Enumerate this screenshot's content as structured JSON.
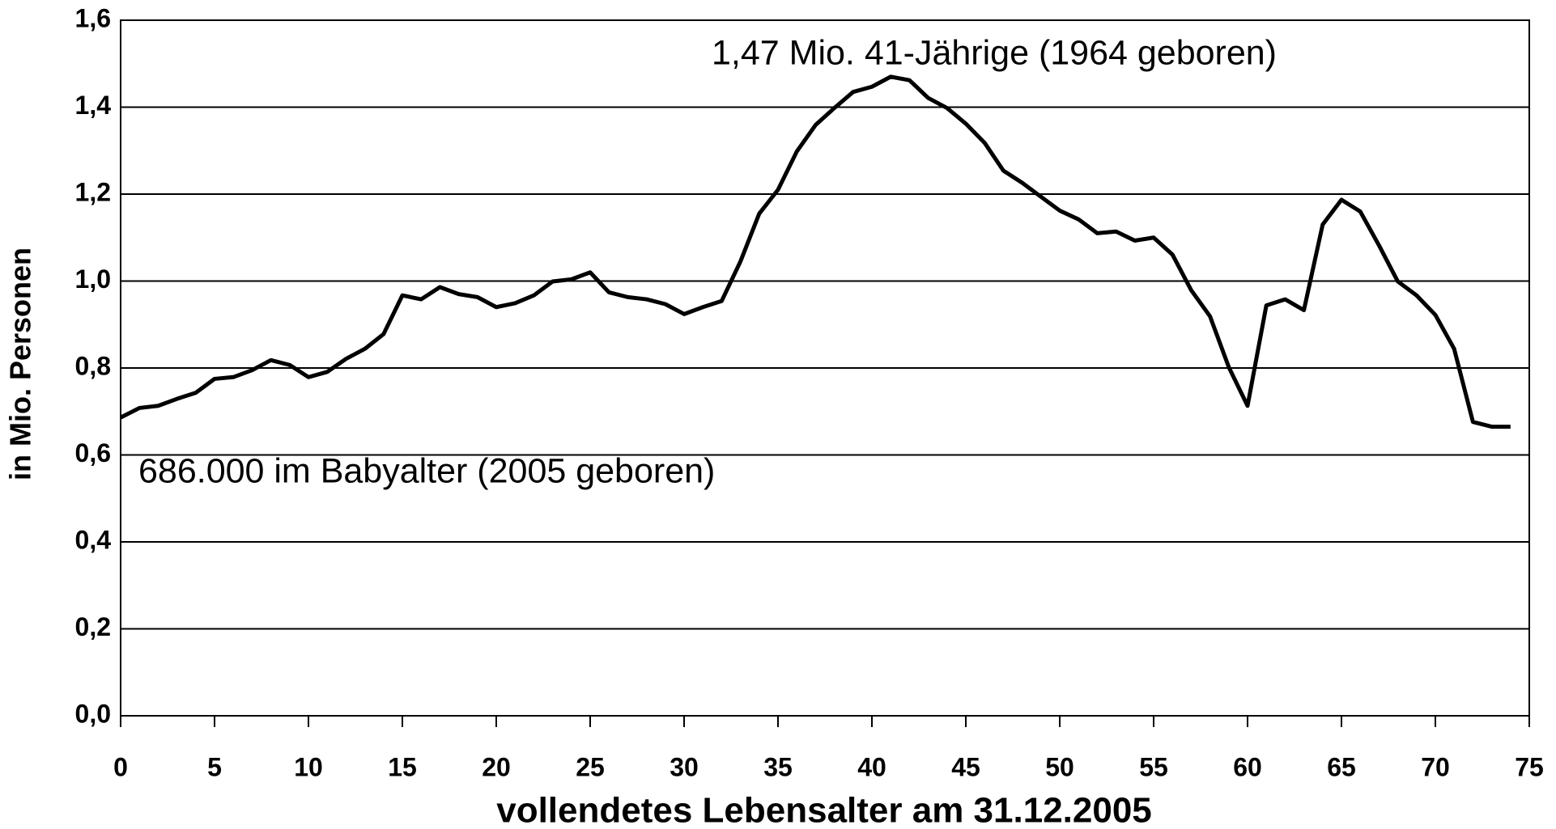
{
  "chart_data": {
    "type": "line",
    "annotations": [
      "1,47 Mio. 41-Jährige (1964 geboren)",
      "686.000 im Babyalter (2005 geboren)"
    ],
    "xlabel": "vollendetes Lebensalter am 31.12.2005",
    "ylabel": "in Mio. Personen",
    "x": [
      0,
      1,
      2,
      3,
      4,
      5,
      6,
      7,
      8,
      9,
      10,
      11,
      12,
      13,
      14,
      15,
      16,
      17,
      18,
      19,
      20,
      21,
      22,
      23,
      24,
      25,
      26,
      27,
      28,
      29,
      30,
      31,
      32,
      33,
      34,
      35,
      36,
      37,
      38,
      39,
      40,
      41,
      42,
      43,
      44,
      45,
      46,
      47,
      48,
      49,
      50,
      51,
      52,
      53,
      54,
      55,
      56,
      57,
      58,
      59,
      60,
      61,
      62,
      63,
      64,
      65,
      66,
      67,
      68,
      69,
      70,
      71,
      72,
      73,
      74
    ],
    "series": [
      {
        "color": "#000000",
        "values": [
          0.686,
          0.708,
          0.713,
          0.729,
          0.743,
          0.775,
          0.779,
          0.795,
          0.818,
          0.807,
          0.779,
          0.791,
          0.821,
          0.844,
          0.878,
          0.967,
          0.958,
          0.986,
          0.97,
          0.963,
          0.94,
          0.949,
          0.967,
          0.999,
          1.004,
          1.02,
          0.974,
          0.963,
          0.958,
          0.947,
          0.924,
          0.94,
          0.954,
          1.045,
          1.155,
          1.21,
          1.298,
          1.359,
          1.398,
          1.435,
          1.447,
          1.47,
          1.462,
          1.421,
          1.398,
          1.362,
          1.318,
          1.254,
          1.226,
          1.194,
          1.162,
          1.142,
          1.11,
          1.114,
          1.093,
          1.1,
          1.061,
          0.979,
          0.919,
          0.802,
          0.713,
          0.944,
          0.958,
          0.933,
          1.13,
          1.187,
          1.16,
          1.082,
          0.999,
          0.967,
          0.922,
          0.844,
          0.676,
          0.665,
          0.665
        ]
      }
    ],
    "xlim": [
      0,
      75
    ],
    "xticks": [
      0,
      5,
      10,
      15,
      20,
      25,
      30,
      35,
      40,
      45,
      50,
      55,
      60,
      65,
      70,
      75
    ],
    "ylim": [
      0,
      1.6
    ],
    "yticks": [
      {
        "value": 0,
        "label": "0,0"
      },
      {
        "value": 0.2,
        "label": "0,2"
      },
      {
        "value": 0.4,
        "label": "0,4"
      },
      {
        "value": 0.6,
        "label": "0,6"
      },
      {
        "value": 0.8,
        "label": "0,8"
      },
      {
        "value": 1.0,
        "label": "1,0"
      },
      {
        "value": 1.2,
        "label": "1,2"
      },
      {
        "value": 1.4,
        "label": "1,4"
      },
      {
        "value": 1.6,
        "label": "1,6"
      }
    ],
    "grid": true
  }
}
